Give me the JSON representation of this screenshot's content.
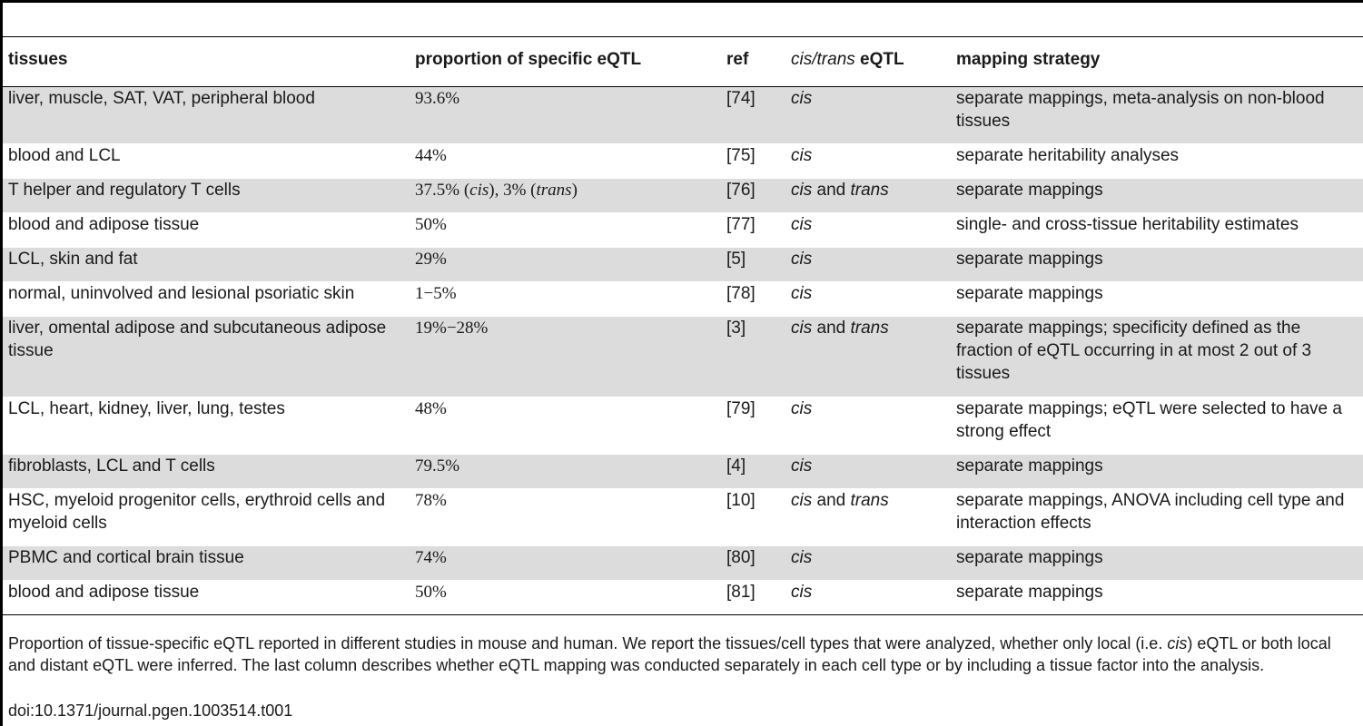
{
  "table": {
    "headers": {
      "tissues": "tissues",
      "proportion": "proportion of specific eQTL",
      "ref": "ref",
      "cis_part": "cis",
      "slash": "/",
      "trans_part": "trans",
      "eqtl_part": " eQTL",
      "mapping": "mapping strategy"
    },
    "rows": [
      {
        "tissues": "liver, muscle, SAT, VAT, peripheral blood",
        "proportion": "93.6%",
        "ref": "[74]",
        "type": "cis",
        "mapping": "separate mappings, meta-analysis on non-blood tissues"
      },
      {
        "tissues": "blood and LCL",
        "proportion": "44%",
        "ref": "[75]",
        "type": "cis",
        "mapping": "separate heritability analyses"
      },
      {
        "tissues": "T helper and regulatory T cells",
        "proportion_a": "37.5% (",
        "proportion_b": "cis",
        "proportion_c": "), 3% (",
        "proportion_d": "trans",
        "proportion_e": ")",
        "ref": "[76]",
        "type_a": "cis",
        "type_and": " and ",
        "type_b": "trans",
        "mapping": "separate mappings"
      },
      {
        "tissues": "blood and adipose tissue",
        "proportion": "50%",
        "ref": "[77]",
        "type": "cis",
        "mapping": "single- and cross-tissue heritability estimates"
      },
      {
        "tissues": "LCL, skin and fat",
        "proportion": "29%",
        "ref": "[5]",
        "type": "cis",
        "mapping": "separate mappings"
      },
      {
        "tissues": "normal, uninvolved and lesional psoriatic skin",
        "proportion": "1−5%",
        "ref": "[78]",
        "type": "cis",
        "mapping": "separate mappings"
      },
      {
        "tissues": "liver, omental adipose and subcutaneous adipose tissue",
        "proportion": "19%−28%",
        "ref": "[3]",
        "type_a": "cis",
        "type_and": " and ",
        "type_b": "trans",
        "mapping": "separate mappings; specificity defined as the fraction of eQTL occurring in at most 2 out of 3 tissues"
      },
      {
        "tissues": "LCL, heart, kidney, liver, lung, testes",
        "proportion": "48%",
        "ref": "[79]",
        "type": "cis",
        "mapping": "separate mappings; eQTL were selected to have a strong effect"
      },
      {
        "tissues": "fibroblasts, LCL and T cells",
        "proportion": "79.5%",
        "ref": "[4]",
        "type": "cis",
        "mapping": "separate mappings"
      },
      {
        "tissues": "HSC, myeloid progenitor cells, erythroid cells and myeloid cells",
        "proportion": "78%",
        "ref": "[10]",
        "type_a": "cis",
        "type_and": " and ",
        "type_b": "trans",
        "mapping": "separate mappings, ANOVA including cell type and interaction effects"
      },
      {
        "tissues": "PBMC and cortical brain tissue",
        "proportion": "74%",
        "ref": "[80]",
        "type": "cis",
        "mapping": "separate mappings"
      },
      {
        "tissues": "blood and adipose tissue",
        "proportion": "50%",
        "ref": "[81]",
        "type": "cis",
        "mapping": "separate mappings"
      }
    ]
  },
  "caption": {
    "part1": "Proportion of tissue-specific eQTL reported in different studies in mouse and human. We report the tissues/cell types that were analyzed, whether only local (i.e. ",
    "cis": "cis",
    "part2": ") eQTL or both local and distant eQTL were inferred. The last column describes whether eQTL mapping was conducted separately in each cell type or by including a tissue factor into the analysis."
  },
  "doi": "doi:10.1371/journal.pgen.1003514.t001"
}
